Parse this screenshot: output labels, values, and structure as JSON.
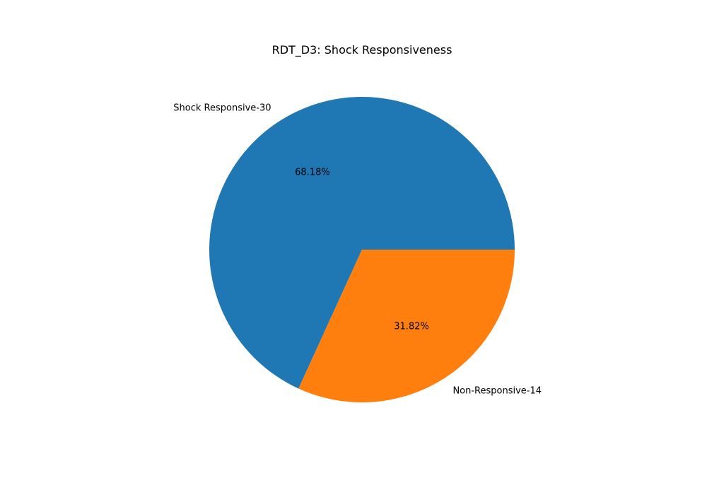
{
  "chart_data": {
    "type": "pie",
    "title": "RDT_D3: Shock Responsiveness",
    "slices": [
      {
        "label": "Shock Responsive-30",
        "value": 30,
        "percent_label": "68.18%",
        "color": "#1f77b4"
      },
      {
        "label": "Non-Responsive-14",
        "value": 14,
        "percent_label": "31.82%",
        "color": "#ff7f0e"
      }
    ]
  }
}
